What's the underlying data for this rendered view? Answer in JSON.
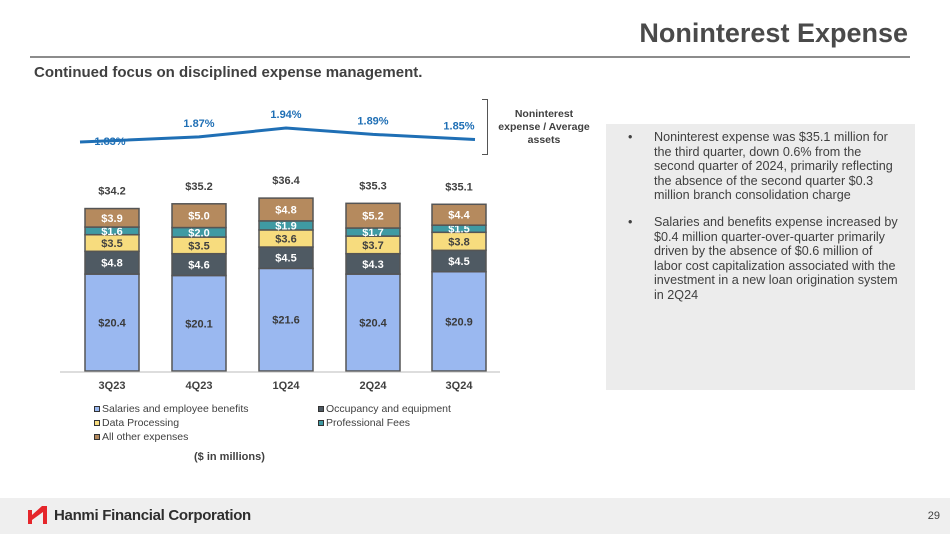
{
  "header": {
    "title": "Noninterest Expense",
    "subtitle": "Continued focus on disciplined expense management."
  },
  "ratio_label": "Noninterest expense / Average assets",
  "units": "($ in millions)",
  "chart_data": {
    "type": "bar",
    "stacked": true,
    "categories": [
      "3Q23",
      "4Q23",
      "1Q24",
      "2Q24",
      "3Q24"
    ],
    "series": [
      {
        "name": "Salaries and employee benefits",
        "color": "#9ab8f0",
        "labels": [
          "$20.4",
          "$20.1",
          "$21.6",
          "$20.4",
          "$20.9"
        ],
        "values": [
          20.4,
          20.1,
          21.6,
          20.4,
          20.9
        ]
      },
      {
        "name": "Occupancy and equipment",
        "color": "#4f5a63",
        "labels": [
          "$4.8",
          "$4.6",
          "$4.5",
          "$4.3",
          "$4.5"
        ],
        "values": [
          4.8,
          4.6,
          4.5,
          4.3,
          4.5
        ]
      },
      {
        "name": "Data Processing",
        "color": "#f7dc7e",
        "labels": [
          "$3.5",
          "$3.5",
          "$3.6",
          "$3.7",
          "$3.8"
        ],
        "values": [
          3.5,
          3.5,
          3.6,
          3.7,
          3.8
        ]
      },
      {
        "name": "Professional Fees",
        "color": "#3f9aa3",
        "labels": [
          "$1.6",
          "$2.0",
          "$1.9",
          "$1.7",
          "$1.5"
        ],
        "values": [
          1.6,
          2.0,
          1.9,
          1.7,
          1.5
        ]
      },
      {
        "name": "All other expenses",
        "color": "#b58a5e",
        "labels": [
          "$3.9",
          "$5.0",
          "$4.8",
          "$5.2",
          "$4.4"
        ],
        "values": [
          3.9,
          5.0,
          4.8,
          5.2,
          4.4
        ]
      }
    ],
    "totals": {
      "labels": [
        "$34.2",
        "$35.2",
        "$36.4",
        "$35.3",
        "$35.1"
      ],
      "values": [
        34.2,
        35.2,
        36.4,
        35.3,
        35.1
      ]
    },
    "line": {
      "name": "Noninterest expense / Average assets",
      "color": "#1f6fb5",
      "labels": [
        "1.83%",
        "1.87%",
        "1.94%",
        "1.89%",
        "1.85%"
      ],
      "values": [
        1.83,
        1.87,
        1.94,
        1.89,
        1.85
      ]
    },
    "ylabel": "$ in millions"
  },
  "bullets": [
    "Noninterest expense was $35.1 million for the third quarter, down 0.6% from the second quarter of 2024, primarily reflecting the absence of the second quarter $0.3 million branch consolidation charge",
    "Salaries and benefits expense increased by $0.4 million quarter-over-quarter primarily driven by the absence of $0.6 million of labor cost capitalization associated with the investment in a new loan origination system in 2Q24"
  ],
  "bullet_char": "•",
  "footer": {
    "logo_text": "Hanmi Financial Corporation",
    "page": "29"
  }
}
